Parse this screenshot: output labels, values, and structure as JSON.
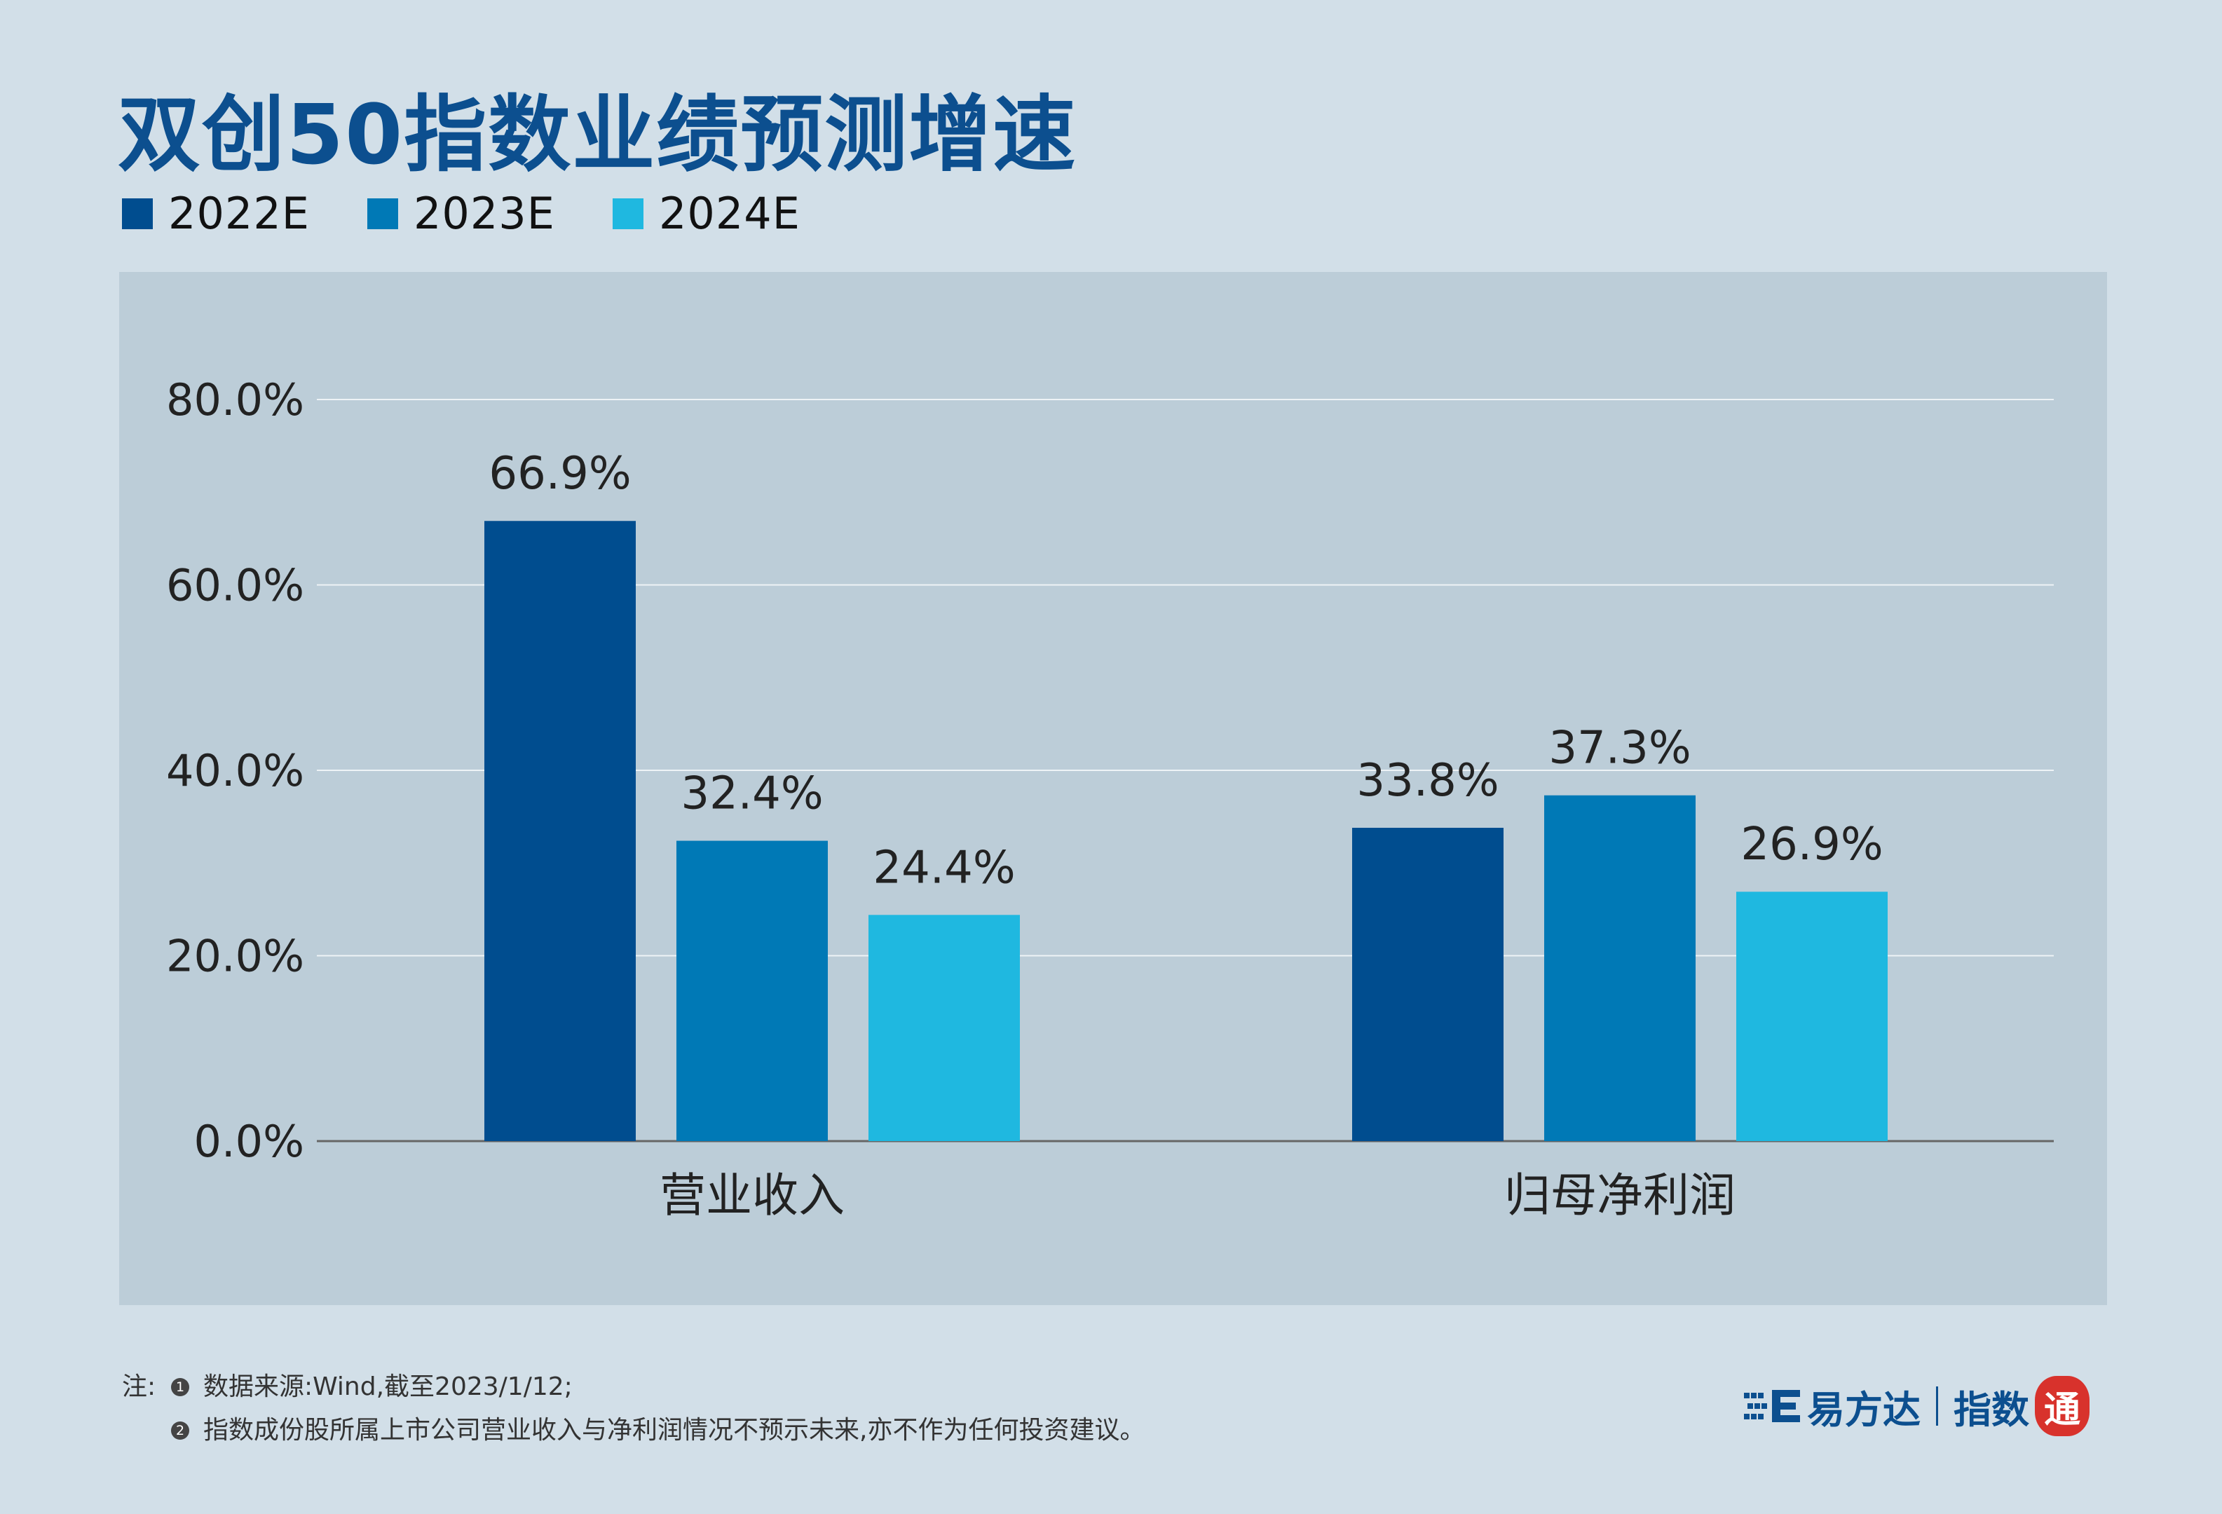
{
  "title": "双创50指数业绩预测增速",
  "colors": {
    "background": "#d2dfe8",
    "plot_background": "#bccdd8",
    "title": "#0c4f8f",
    "series": [
      "#004d8f",
      "#0079b6",
      "#1fb8e0"
    ]
  },
  "legend": [
    {
      "label": "2022E"
    },
    {
      "label": "2023E"
    },
    {
      "label": "2024E"
    }
  ],
  "chart_data": {
    "type": "bar",
    "title": "双创50指数业绩预测增速",
    "categories": [
      "营业收入",
      "归母净利润"
    ],
    "series": [
      {
        "name": "2022E",
        "values": [
          66.9,
          33.8
        ],
        "labels": [
          "66.9%",
          "33.8%"
        ]
      },
      {
        "name": "2023E",
        "values": [
          32.4,
          37.3
        ],
        "labels": [
          "32.4%",
          "37.3%"
        ]
      },
      {
        "name": "2024E",
        "values": [
          24.4,
          26.9
        ],
        "labels": [
          "24.4%",
          "26.9%"
        ]
      }
    ],
    "ylim": [
      0,
      80
    ],
    "yticks": [
      0,
      20,
      40,
      60,
      80
    ],
    "ytick_labels": [
      "0.0%",
      "20.0%",
      "40.0%",
      "60.0%",
      "80.0%"
    ],
    "xlabel": "",
    "ylabel": "",
    "grid": true,
    "legend_position": "top-left"
  },
  "footnote": {
    "prefix": "注:",
    "items": [
      {
        "bullet": "1",
        "text": "数据来源:Wind,截至2023/1/12;"
      },
      {
        "bullet": "2",
        "text": "指数成份股所属上市公司营业收入与净利润情况不预示未来,亦不作为任何投资建议。"
      }
    ]
  },
  "brand": {
    "icon": "e-fund-logo-icon",
    "name": "易方达",
    "sub": "指数",
    "seal": "通"
  }
}
